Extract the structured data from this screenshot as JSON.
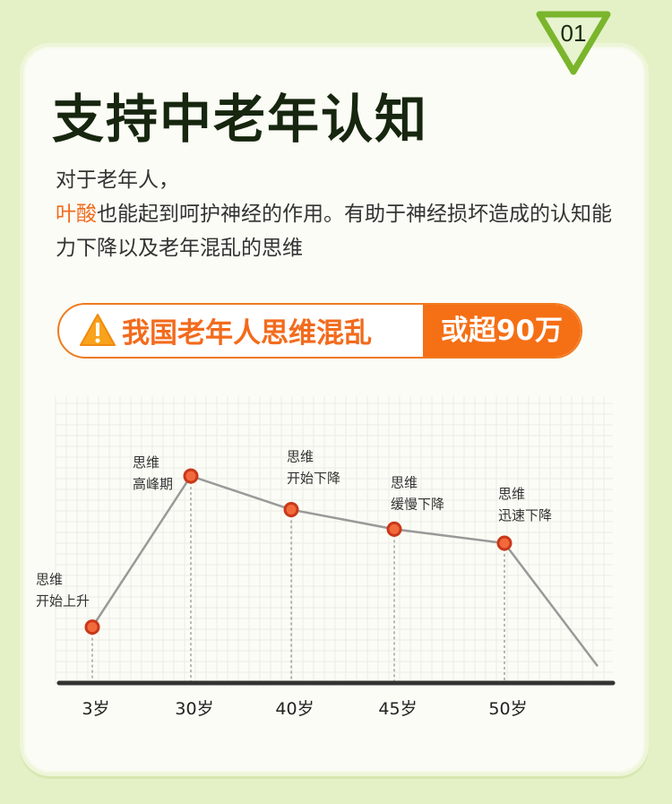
{
  "badge": {
    "number": "01"
  },
  "title": "支持中老年认知",
  "description": {
    "line1": "对于老年人，",
    "highlight": "叶酸",
    "line2_rest": "也能起到呵护神经的作用。有助于神经损坏造成的认知能力下降以及老年混乱的思维"
  },
  "banner": {
    "icon": "warning-icon",
    "left_text": "我国老年人思维混乱",
    "right_text": "或超90万"
  },
  "colors": {
    "accent": "#f56f15",
    "title": "#17260f",
    "badge": "#7ab52c",
    "point": "#d8401c",
    "line": "#999999"
  },
  "chart_data": {
    "type": "line",
    "categories": [
      "3岁",
      "30岁",
      "40岁",
      "45岁",
      "50岁"
    ],
    "values": [
      20,
      74,
      62,
      55,
      50
    ],
    "trailing_value": 6,
    "annotations": [
      [
        "思维",
        "开始上升"
      ],
      [
        "思维",
        "高峰期"
      ],
      [
        "思维",
        "开始下降"
      ],
      [
        "思维",
        "缓慢下降"
      ],
      [
        "思维",
        "迅速下降"
      ]
    ],
    "ylim": [
      0,
      100
    ],
    "grid": true
  }
}
